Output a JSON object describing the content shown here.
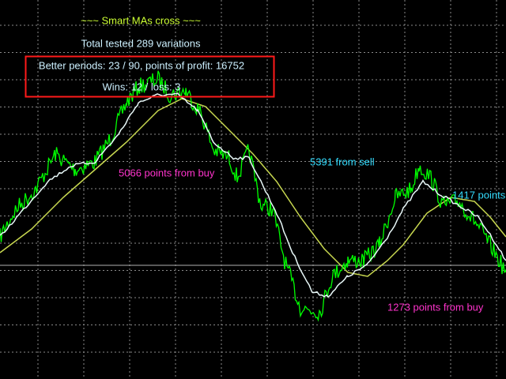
{
  "header": {
    "title": "~~~ Smart MAs cross ~~~",
    "tested": "Total tested 289 variations"
  },
  "summary": {
    "periods": "Better periods: 23 / 90, points of profit: 16752",
    "wins": "Wins: 12 / loss: 3"
  },
  "annotations": [
    "5066 points from buy",
    "5391 from sell",
    "1417 points",
    "1273 points from buy"
  ]
}
